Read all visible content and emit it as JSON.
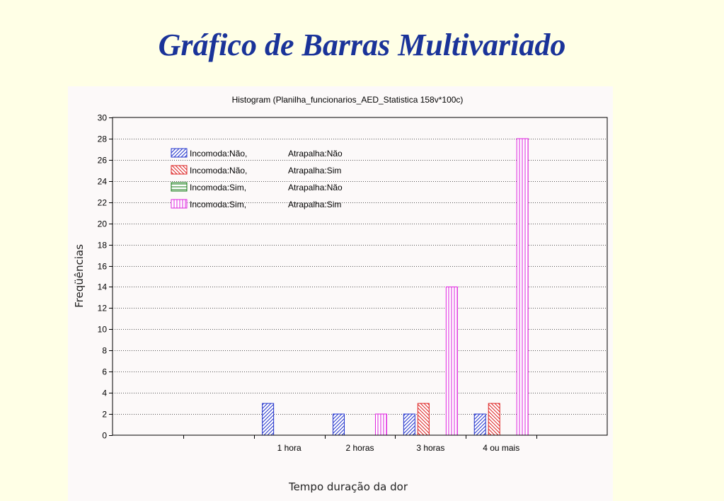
{
  "slide": {
    "title": "Gráfico de Barras Multivariado"
  },
  "chart_data": {
    "type": "bar",
    "title": "Histogram (Planilha_funcionarios_AED_Statistica 158v*100c)",
    "xlabel": "Tempo duração da dor",
    "ylabel": "Freqüências",
    "ylim": [
      0,
      30
    ],
    "yticks": [
      0,
      2,
      4,
      6,
      8,
      10,
      12,
      14,
      16,
      18,
      20,
      22,
      24,
      26,
      28,
      30
    ],
    "grid": true,
    "legend_position": "top-left",
    "categories": [
      "1 hora",
      "2 horas",
      "3 horas",
      "4 ou mais"
    ],
    "series": [
      {
        "name": "Incomoda:Não,",
        "name2": "Atrapalha:Não",
        "color": "#2233cc",
        "pattern": "diag-fwd",
        "values": [
          3,
          2,
          2,
          2
        ]
      },
      {
        "name": "Incomoda:Não,",
        "name2": "Atrapalha:Sim",
        "color": "#dd2222",
        "pattern": "diag-back",
        "values": [
          0,
          0,
          3,
          3
        ]
      },
      {
        "name": "Incomoda:Sim,",
        "name2": "Atrapalha:Não",
        "color": "#117711",
        "pattern": "horizontal",
        "values": [
          0,
          0,
          0,
          0
        ]
      },
      {
        "name": "Incomoda:Sim,",
        "name2": "Atrapalha:Sim",
        "color": "#dd22dd",
        "pattern": "vertical",
        "values": [
          0,
          2,
          14,
          28
        ]
      }
    ]
  }
}
